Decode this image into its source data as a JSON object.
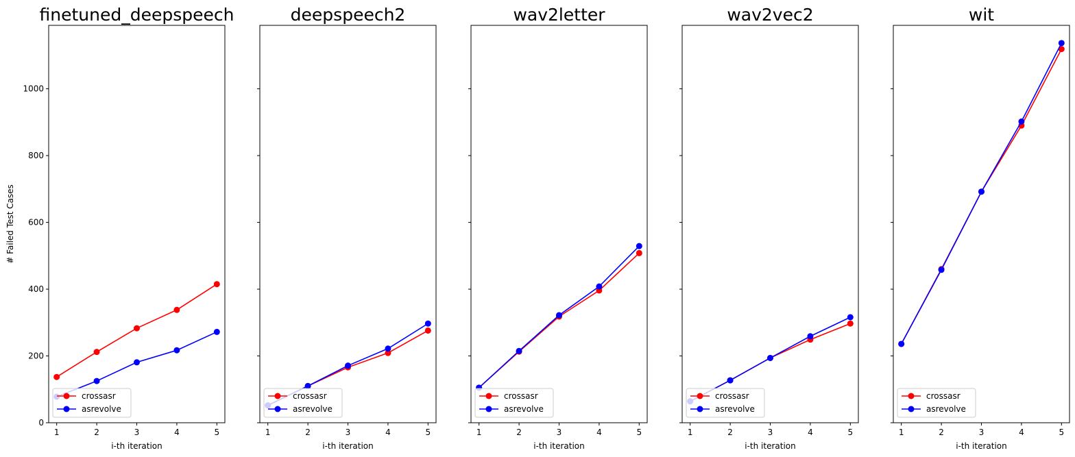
{
  "chart_data": {
    "type": "line",
    "ylabel": "# Failed Test Cases",
    "xlabel": "i-th iteration",
    "x": [
      1,
      2,
      3,
      4,
      5
    ],
    "xlim": [
      0.8,
      5.2
    ],
    "ylim": [
      0,
      1190
    ],
    "yticks": [
      0,
      200,
      400,
      600,
      800,
      1000
    ],
    "series_colors": {
      "crossasr": "#ff0000",
      "asrevolve": "#0000ff"
    },
    "legend_location": "lower-left",
    "panels": [
      {
        "title": "finetuned_deepspeech",
        "series": [
          {
            "name": "crossasr",
            "values": [
              137,
              212,
              283,
              338,
              415
            ]
          },
          {
            "name": "asrevolve",
            "values": [
              78,
              125,
              181,
              217,
              272
            ]
          }
        ]
      },
      {
        "title": "deepspeech2",
        "series": [
          {
            "name": "crossasr",
            "values": [
              52,
              110,
              166,
              209,
              276
            ]
          },
          {
            "name": "asrevolve",
            "values": [
              52,
              110,
              171,
              222,
              297
            ]
          }
        ]
      },
      {
        "title": "wav2letter",
        "series": [
          {
            "name": "crossasr",
            "values": [
              105,
              213,
              318,
              396,
              508
            ]
          },
          {
            "name": "asrevolve",
            "values": [
              105,
              215,
              322,
              408,
              529
            ]
          }
        ]
      },
      {
        "title": "wav2vec2",
        "series": [
          {
            "name": "crossasr",
            "values": [
              64,
              127,
              194,
              249,
              297
            ]
          },
          {
            "name": "asrevolve",
            "values": [
              64,
              127,
              194,
              259,
              316
            ]
          }
        ]
      },
      {
        "title": "wit",
        "series": [
          {
            "name": "crossasr",
            "values": [
              236,
              460,
              692,
              890,
              1119
            ]
          },
          {
            "name": "asrevolve",
            "values": [
              236,
              458,
              692,
              902,
              1137
            ]
          }
        ]
      }
    ]
  }
}
